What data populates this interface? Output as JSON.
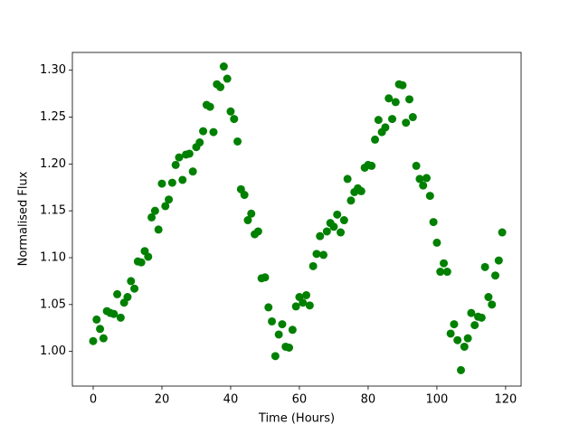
{
  "chart_data": {
    "type": "scatter",
    "xlabel": "Time (Hours)",
    "ylabel": "Normalised Flux",
    "color": "#008000",
    "x": [
      0,
      1,
      2,
      3,
      4,
      5,
      6,
      7,
      8,
      9,
      10,
      11,
      12,
      13,
      14,
      15,
      16,
      17,
      18,
      19,
      20,
      21,
      22,
      23,
      24,
      25,
      26,
      27,
      28,
      29,
      30,
      31,
      32,
      33,
      34,
      35,
      36,
      37,
      38,
      39,
      40,
      41,
      42,
      43,
      44,
      45,
      46,
      47,
      48,
      49,
      50,
      51,
      52,
      53,
      54,
      55,
      56,
      57,
      58,
      59,
      60,
      61,
      62,
      63,
      64,
      65,
      66,
      67,
      68,
      69,
      70,
      71,
      72,
      73,
      74,
      75,
      76,
      77,
      78,
      79,
      80,
      81,
      82,
      83,
      84,
      85,
      86,
      87,
      88,
      89,
      90,
      91,
      92,
      93,
      94,
      95,
      96,
      97,
      98,
      99,
      100,
      101,
      102,
      103,
      104,
      105,
      106,
      107,
      108,
      109,
      110,
      111,
      112,
      113,
      114,
      115,
      116,
      117,
      118,
      119
    ],
    "values": [
      1.011,
      1.034,
      1.024,
      1.014,
      1.043,
      1.041,
      1.04,
      1.061,
      1.036,
      1.052,
      1.058,
      1.075,
      1.067,
      1.096,
      1.095,
      1.107,
      1.101,
      1.143,
      1.15,
      1.13,
      1.179,
      1.155,
      1.162,
      1.18,
      1.199,
      1.207,
      1.183,
      1.21,
      1.211,
      1.192,
      1.218,
      1.223,
      1.235,
      1.263,
      1.261,
      1.234,
      1.285,
      1.282,
      1.304,
      1.291,
      1.256,
      1.248,
      1.224,
      1.173,
      1.167,
      1.14,
      1.147,
      1.125,
      1.128,
      1.078,
      1.079,
      1.047,
      1.032,
      0.995,
      1.018,
      1.029,
      1.005,
      1.004,
      1.023,
      1.048,
      1.058,
      1.052,
      1.06,
      1.049,
      1.091,
      1.104,
      1.123,
      1.103,
      1.128,
      1.137,
      1.133,
      1.146,
      1.127,
      1.14,
      1.184,
      1.161,
      1.17,
      1.174,
      1.171,
      1.196,
      1.199,
      1.198,
      1.226,
      1.247,
      1.234,
      1.239,
      1.27,
      1.248,
      1.266,
      1.285,
      1.284,
      1.244,
      1.269,
      1.25,
      1.198,
      1.184,
      1.177,
      1.185,
      1.166,
      1.138,
      1.116,
      1.085,
      1.094,
      1.085,
      1.019,
      1.029,
      1.012,
      0.98,
      1.005,
      1.014,
      1.041,
      1.028,
      1.037,
      1.036,
      1.09,
      1.058,
      1.05,
      1.081,
      1.097,
      1.127
    ],
    "xlim": [
      -6.05,
      124.5
    ],
    "ylim": [
      0.963,
      1.319
    ],
    "xticks": [
      0,
      20,
      40,
      60,
      80,
      100,
      120
    ],
    "yticks": [
      {
        "value": 1,
        "label": "1.00"
      },
      1.05,
      {
        "value": 1.1,
        "label": "1.10"
      },
      1.15,
      {
        "value": 1.2,
        "label": "1.20"
      },
      1.25,
      {
        "value": 1.3,
        "label": "1.30"
      }
    ]
  }
}
